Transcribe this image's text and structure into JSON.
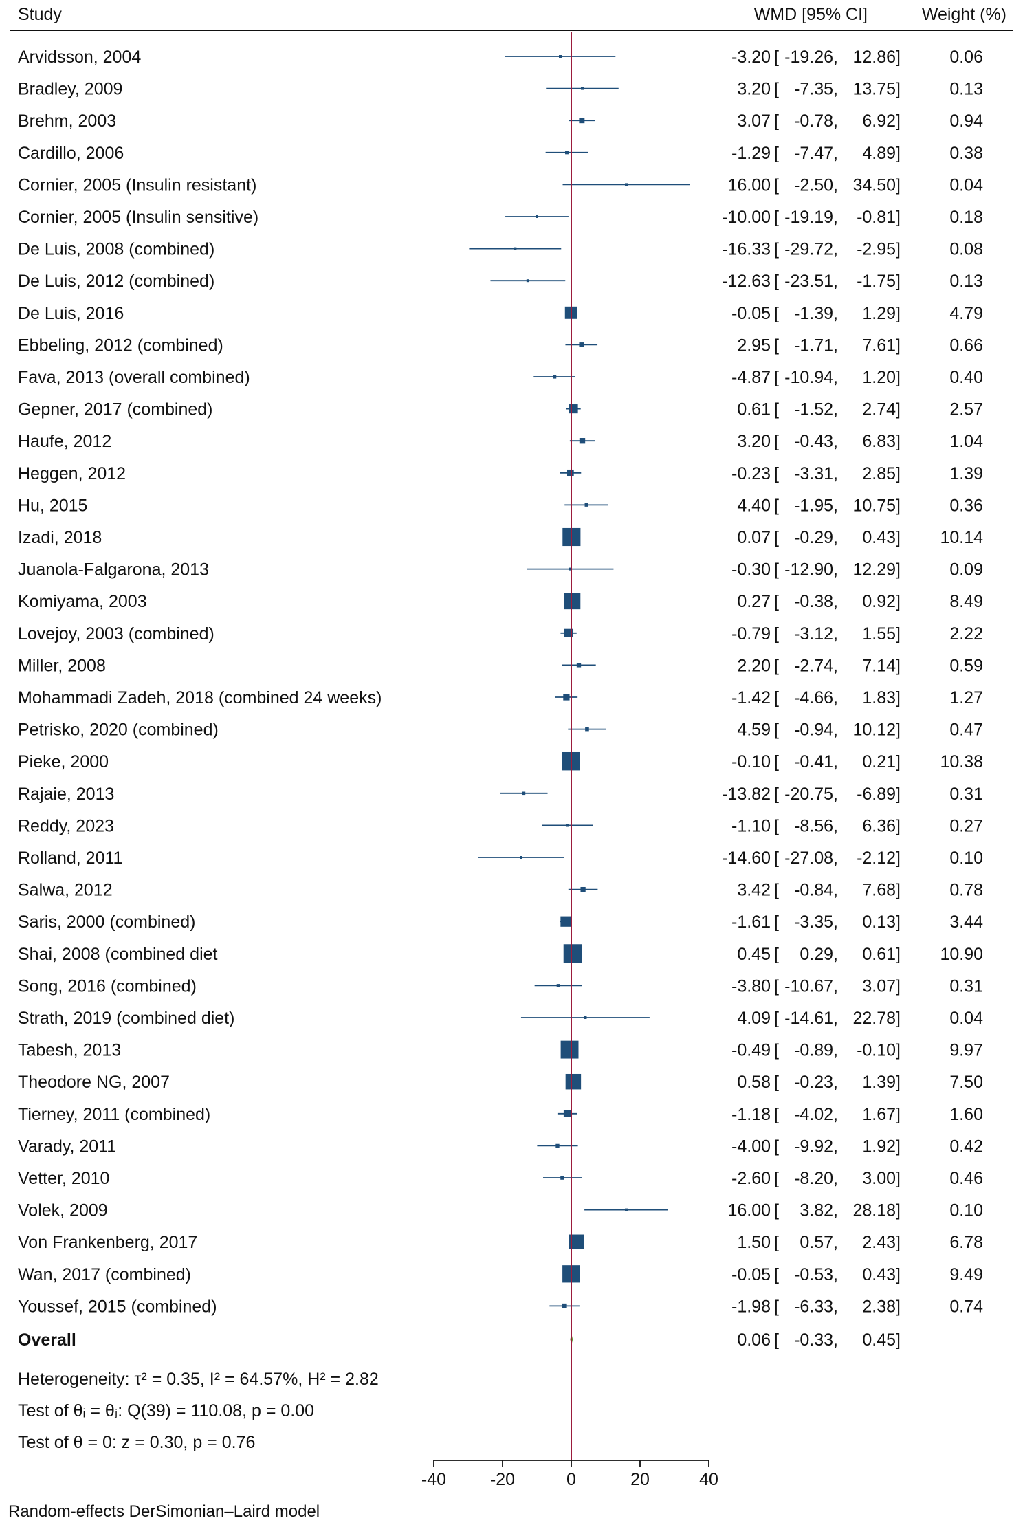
{
  "headers": {
    "study": "Study",
    "wmd": "WMD [95% CI]",
    "weight": "Weight (%)"
  },
  "colors": {
    "marker": "#1f4e79",
    "ci_line": "#1f4e79",
    "ref_line": "#9b1c3c",
    "overall": "#5a9e34",
    "text": "#111111"
  },
  "chart_data": {
    "type": "forest",
    "x_axis": {
      "range": [
        -40,
        40
      ],
      "ticks": [
        "-40",
        "-20",
        "0",
        "20",
        "40"
      ],
      "tick_values": [
        -40,
        -20,
        0,
        20,
        40
      ]
    },
    "reference_line": 0,
    "studies": [
      {
        "label": "Arvidsson, 2004",
        "est": -3.2,
        "lo": -19.26,
        "hi": 12.86,
        "weight": 0.06,
        "est_text": "-3.20",
        "lo_text": "-19.26,",
        "hi_text": "12.86]",
        "weight_text": "0.06"
      },
      {
        "label": "Bradley, 2009",
        "est": 3.2,
        "lo": -7.35,
        "hi": 13.75,
        "weight": 0.13,
        "est_text": "3.20",
        "lo_text": "-7.35,",
        "hi_text": "13.75]",
        "weight_text": "0.13"
      },
      {
        "label": "Brehm, 2003",
        "est": 3.07,
        "lo": -0.78,
        "hi": 6.92,
        "weight": 0.94,
        "est_text": "3.07",
        "lo_text": "-0.78,",
        "hi_text": "6.92]",
        "weight_text": "0.94"
      },
      {
        "label": "Cardillo, 2006",
        "est": -1.29,
        "lo": -7.47,
        "hi": 4.89,
        "weight": 0.38,
        "est_text": "-1.29",
        "lo_text": "-7.47,",
        "hi_text": "4.89]",
        "weight_text": "0.38"
      },
      {
        "label": "Cornier, 2005 (Insulin resistant)",
        "est": 16.0,
        "lo": -2.5,
        "hi": 34.5,
        "weight": 0.04,
        "est_text": "16.00",
        "lo_text": "-2.50,",
        "hi_text": "34.50]",
        "weight_text": "0.04"
      },
      {
        "label": "Cornier, 2005 (Insulin sensitive)",
        "est": -10.0,
        "lo": -19.19,
        "hi": -0.81,
        "weight": 0.18,
        "est_text": "-10.00",
        "lo_text": "-19.19,",
        "hi_text": "-0.81]",
        "weight_text": "0.18"
      },
      {
        "label": "De Luis, 2008 (combined)",
        "est": -16.33,
        "lo": -29.72,
        "hi": -2.95,
        "weight": 0.08,
        "est_text": "-16.33",
        "lo_text": "-29.72,",
        "hi_text": "-2.95]",
        "weight_text": "0.08"
      },
      {
        "label": "De Luis, 2012 (combined)",
        "est": -12.63,
        "lo": -23.51,
        "hi": -1.75,
        "weight": 0.13,
        "est_text": "-12.63",
        "lo_text": "-23.51,",
        "hi_text": "-1.75]",
        "weight_text": "0.13"
      },
      {
        "label": "De Luis, 2016",
        "est": -0.05,
        "lo": -1.39,
        "hi": 1.29,
        "weight": 4.79,
        "est_text": "-0.05",
        "lo_text": "-1.39,",
        "hi_text": "1.29]",
        "weight_text": "4.79"
      },
      {
        "label": "Ebbeling, 2012 (combined)",
        "est": 2.95,
        "lo": -1.71,
        "hi": 7.61,
        "weight": 0.66,
        "est_text": "2.95",
        "lo_text": "-1.71,",
        "hi_text": "7.61]",
        "weight_text": "0.66"
      },
      {
        "label": "Fava, 2013 (overall combined)",
        "est": -4.87,
        "lo": -10.94,
        "hi": 1.2,
        "weight": 0.4,
        "est_text": "-4.87",
        "lo_text": "-10.94,",
        "hi_text": "1.20]",
        "weight_text": "0.40"
      },
      {
        "label": "Gepner, 2017 (combined)",
        "est": 0.61,
        "lo": -1.52,
        "hi": 2.74,
        "weight": 2.57,
        "est_text": "0.61",
        "lo_text": "-1.52,",
        "hi_text": "2.74]",
        "weight_text": "2.57"
      },
      {
        "label": "Haufe, 2012",
        "est": 3.2,
        "lo": -0.43,
        "hi": 6.83,
        "weight": 1.04,
        "est_text": "3.20",
        "lo_text": "-0.43,",
        "hi_text": "6.83]",
        "weight_text": "1.04"
      },
      {
        "label": "Heggen, 2012",
        "est": -0.23,
        "lo": -3.31,
        "hi": 2.85,
        "weight": 1.39,
        "est_text": "-0.23",
        "lo_text": "-3.31,",
        "hi_text": "2.85]",
        "weight_text": "1.39"
      },
      {
        "label": "Hu, 2015",
        "est": 4.4,
        "lo": -1.95,
        "hi": 10.75,
        "weight": 0.36,
        "est_text": "4.40",
        "lo_text": "-1.95,",
        "hi_text": "10.75]",
        "weight_text": "0.36"
      },
      {
        "label": "Izadi, 2018",
        "est": 0.07,
        "lo": -0.29,
        "hi": 0.43,
        "weight": 10.14,
        "est_text": "0.07",
        "lo_text": "-0.29,",
        "hi_text": "0.43]",
        "weight_text": "10.14"
      },
      {
        "label": "Juanola-Falgarona, 2013",
        "est": -0.3,
        "lo": -12.9,
        "hi": 12.29,
        "weight": 0.09,
        "est_text": "-0.30",
        "lo_text": "-12.90,",
        "hi_text": "12.29]",
        "weight_text": "0.09"
      },
      {
        "label": "Komiyama, 2003",
        "est": 0.27,
        "lo": -0.38,
        "hi": 0.92,
        "weight": 8.49,
        "est_text": "0.27",
        "lo_text": "-0.38,",
        "hi_text": "0.92]",
        "weight_text": "8.49"
      },
      {
        "label": "Lovejoy, 2003 (combined)",
        "est": -0.79,
        "lo": -3.12,
        "hi": 1.55,
        "weight": 2.22,
        "est_text": "-0.79",
        "lo_text": "-3.12,",
        "hi_text": "1.55]",
        "weight_text": "2.22"
      },
      {
        "label": "Miller, 2008",
        "est": 2.2,
        "lo": -2.74,
        "hi": 7.14,
        "weight": 0.59,
        "est_text": "2.20",
        "lo_text": "-2.74,",
        "hi_text": "7.14]",
        "weight_text": "0.59"
      },
      {
        "label": "Mohammadi Zadeh, 2018 (combined 24 weeks)",
        "est": -1.42,
        "lo": -4.66,
        "hi": 1.83,
        "weight": 1.27,
        "est_text": "-1.42",
        "lo_text": "-4.66,",
        "hi_text": "1.83]",
        "weight_text": "1.27"
      },
      {
        "label": "Petrisko, 2020 (combined)",
        "est": 4.59,
        "lo": -0.94,
        "hi": 10.12,
        "weight": 0.47,
        "est_text": "4.59",
        "lo_text": "-0.94,",
        "hi_text": "10.12]",
        "weight_text": "0.47"
      },
      {
        "label": "Pieke, 2000",
        "est": -0.1,
        "lo": -0.41,
        "hi": 0.21,
        "weight": 10.38,
        "est_text": "-0.10",
        "lo_text": "-0.41,",
        "hi_text": "0.21]",
        "weight_text": "10.38"
      },
      {
        "label": "Rajaie, 2013",
        "est": -13.82,
        "lo": -20.75,
        "hi": -6.89,
        "weight": 0.31,
        "est_text": "-13.82",
        "lo_text": "-20.75,",
        "hi_text": "-6.89]",
        "weight_text": "0.31"
      },
      {
        "label": "Reddy, 2023",
        "est": -1.1,
        "lo": -8.56,
        "hi": 6.36,
        "weight": 0.27,
        "est_text": "-1.10",
        "lo_text": "-8.56,",
        "hi_text": "6.36]",
        "weight_text": "0.27"
      },
      {
        "label": "Rolland, 2011",
        "est": -14.6,
        "lo": -27.08,
        "hi": -2.12,
        "weight": 0.1,
        "est_text": "-14.60",
        "lo_text": "-27.08,",
        "hi_text": "-2.12]",
        "weight_text": "0.10"
      },
      {
        "label": "Salwa, 2012",
        "est": 3.42,
        "lo": -0.84,
        "hi": 7.68,
        "weight": 0.78,
        "est_text": "3.42",
        "lo_text": "-0.84,",
        "hi_text": "7.68]",
        "weight_text": "0.78"
      },
      {
        "label": "Saris, 2000 (combined)",
        "est": -1.61,
        "lo": -3.35,
        "hi": 0.13,
        "weight": 3.44,
        "est_text": "-1.61",
        "lo_text": "-3.35,",
        "hi_text": "0.13]",
        "weight_text": "3.44"
      },
      {
        "label": "Shai, 2008 (combined diet",
        "est": 0.45,
        "lo": 0.29,
        "hi": 0.61,
        "weight": 10.9,
        "est_text": "0.45",
        "lo_text": "0.29,",
        "hi_text": "0.61]",
        "weight_text": "10.90"
      },
      {
        "label": "Song, 2016 (combined)",
        "est": -3.8,
        "lo": -10.67,
        "hi": 3.07,
        "weight": 0.31,
        "est_text": "-3.80",
        "lo_text": "-10.67,",
        "hi_text": "3.07]",
        "weight_text": "0.31"
      },
      {
        "label": "Strath, 2019 (combined diet)",
        "est": 4.09,
        "lo": -14.61,
        "hi": 22.78,
        "weight": 0.04,
        "est_text": "4.09",
        "lo_text": "-14.61,",
        "hi_text": "22.78]",
        "weight_text": "0.04"
      },
      {
        "label": "Tabesh, 2013",
        "est": -0.49,
        "lo": -0.89,
        "hi": -0.1,
        "weight": 9.97,
        "est_text": "-0.49",
        "lo_text": "-0.89,",
        "hi_text": "-0.10]",
        "weight_text": "9.97"
      },
      {
        "label": "Theodore NG, 2007",
        "est": 0.58,
        "lo": -0.23,
        "hi": 1.39,
        "weight": 7.5,
        "est_text": "0.58",
        "lo_text": "-0.23,",
        "hi_text": "1.39]",
        "weight_text": "7.50"
      },
      {
        "label": "Tierney, 2011 (combined)",
        "est": -1.18,
        "lo": -4.02,
        "hi": 1.67,
        "weight": 1.6,
        "est_text": "-1.18",
        "lo_text": "-4.02,",
        "hi_text": "1.67]",
        "weight_text": "1.60"
      },
      {
        "label": "Varady, 2011",
        "est": -4.0,
        "lo": -9.92,
        "hi": 1.92,
        "weight": 0.42,
        "est_text": "-4.00",
        "lo_text": "-9.92,",
        "hi_text": "1.92]",
        "weight_text": "0.42"
      },
      {
        "label": "Vetter, 2010",
        "est": -2.6,
        "lo": -8.2,
        "hi": 3.0,
        "weight": 0.46,
        "est_text": "-2.60",
        "lo_text": "-8.20,",
        "hi_text": "3.00]",
        "weight_text": "0.46"
      },
      {
        "label": "Volek, 2009",
        "est": 16.0,
        "lo": 3.82,
        "hi": 28.18,
        "weight": 0.1,
        "est_text": "16.00",
        "lo_text": "3.82,",
        "hi_text": "28.18]",
        "weight_text": "0.10"
      },
      {
        "label": "Von Frankenberg, 2017",
        "est": 1.5,
        "lo": 0.57,
        "hi": 2.43,
        "weight": 6.78,
        "est_text": "1.50",
        "lo_text": "0.57,",
        "hi_text": "2.43]",
        "weight_text": "6.78"
      },
      {
        "label": "Wan, 2017 (combined)",
        "est": -0.05,
        "lo": -0.53,
        "hi": 0.43,
        "weight": 9.49,
        "est_text": "-0.05",
        "lo_text": "-0.53,",
        "hi_text": "0.43]",
        "weight_text": "9.49"
      },
      {
        "label": "Youssef, 2015 (combined)",
        "est": -1.98,
        "lo": -6.33,
        "hi": 2.38,
        "weight": 0.74,
        "est_text": "-1.98",
        "lo_text": "-6.33,",
        "hi_text": "2.38]",
        "weight_text": "0.74"
      }
    ],
    "overall": {
      "label": "Overall",
      "est": 0.06,
      "lo": -0.33,
      "hi": 0.45,
      "est_text": "0.06",
      "lo_text": "-0.33,",
      "hi_text": "0.45]"
    }
  },
  "stats": {
    "heterogeneity": "Heterogeneity: τ² = 0.35, I² = 64.57%, H² = 2.82",
    "test_theta_i": "Test of θᵢ = θⱼ: Q(39) = 110.08, p = 0.00",
    "test_theta": "Test of θ = 0: z = 0.30, p = 0.76"
  },
  "footnote": "Random-effects DerSimonian–Laird model"
}
